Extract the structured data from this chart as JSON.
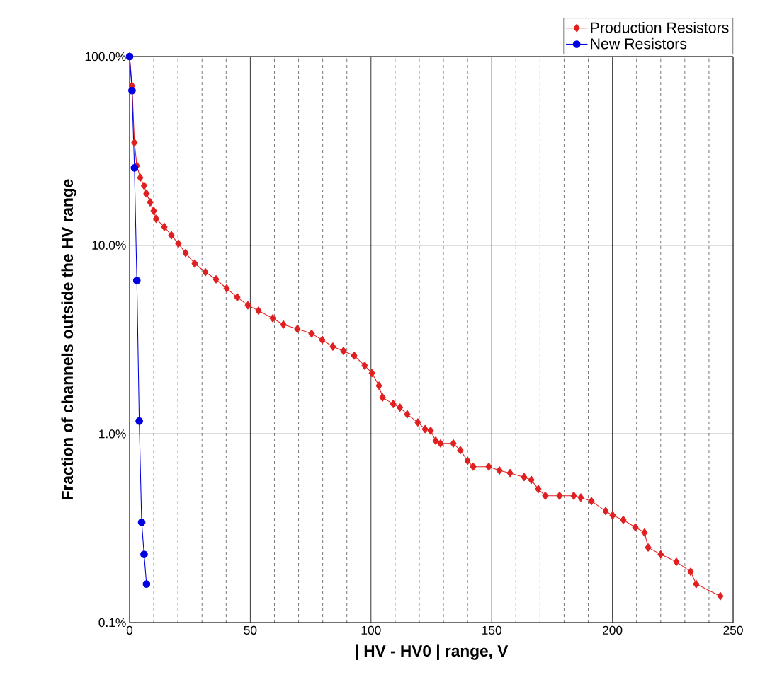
{
  "chart_data": {
    "type": "line",
    "xlabel": "| HV - HV0 | range, V",
    "ylabel": "Fraction of channels outside the HV range",
    "log": "y",
    "grid": true,
    "legend": "top right",
    "line_style": "solid",
    "xlim": [
      0,
      250
    ],
    "xticks": [
      0,
      50,
      100,
      150,
      200,
      250
    ],
    "ylim": [
      0.1,
      100
    ],
    "yticks": [
      {
        "value": 0.1,
        "label": "0.1%"
      },
      {
        "value": 1,
        "label": "1.0%"
      },
      {
        "value": 10,
        "label": "10.0%"
      },
      {
        "value": 100,
        "label": "100.0%"
      }
    ],
    "series": [
      {
        "name": "Production Resistors",
        "color": "#e02020",
        "marker": "diamond",
        "x": [
          0,
          1,
          2,
          3,
          4.4,
          6,
          7,
          8.5,
          10,
          11,
          14.4,
          17.3,
          20.2,
          23.2,
          27,
          31.4,
          35.8,
          40.2,
          44.6,
          49,
          53.4,
          59.3,
          63.7,
          69.5,
          75.4,
          79.8,
          84.2,
          88.6,
          93,
          97.4,
          100.4,
          103.3,
          104.8,
          109.2,
          112,
          115,
          119.4,
          122.4,
          124.7,
          126.8,
          128.8,
          134.1,
          137,
          140,
          142.3,
          148.8,
          153.2,
          157.6,
          163.4,
          166.4,
          169.3,
          172.2,
          178.1,
          184,
          186.9,
          191.3,
          197.2,
          200.1,
          204.5,
          209.5,
          213.3,
          214.8,
          220,
          226.5,
          232.4,
          234.7,
          244.7
        ],
        "values": [
          100,
          70,
          35,
          26.4,
          22.8,
          20.7,
          18.8,
          16.9,
          15.2,
          13.8,
          12.5,
          11.3,
          10.2,
          9.1,
          8.0,
          7.2,
          6.6,
          5.9,
          5.3,
          4.8,
          4.5,
          4.1,
          3.8,
          3.6,
          3.4,
          3.15,
          2.9,
          2.75,
          2.6,
          2.3,
          2.1,
          1.8,
          1.56,
          1.44,
          1.38,
          1.27,
          1.15,
          1.06,
          1.04,
          0.92,
          0.89,
          0.89,
          0.82,
          0.72,
          0.67,
          0.67,
          0.64,
          0.62,
          0.59,
          0.57,
          0.51,
          0.47,
          0.47,
          0.47,
          0.46,
          0.44,
          0.39,
          0.37,
          0.35,
          0.32,
          0.3,
          0.25,
          0.23,
          0.21,
          0.186,
          0.16,
          0.138
        ]
      },
      {
        "name": "New Resistors",
        "color": "#0000e0",
        "marker": "circle",
        "x": [
          0,
          1,
          2,
          3,
          4,
          5,
          6,
          7
        ],
        "values": [
          100,
          66,
          25.7,
          6.5,
          1.17,
          0.34,
          0.23,
          0.16
        ]
      }
    ]
  }
}
